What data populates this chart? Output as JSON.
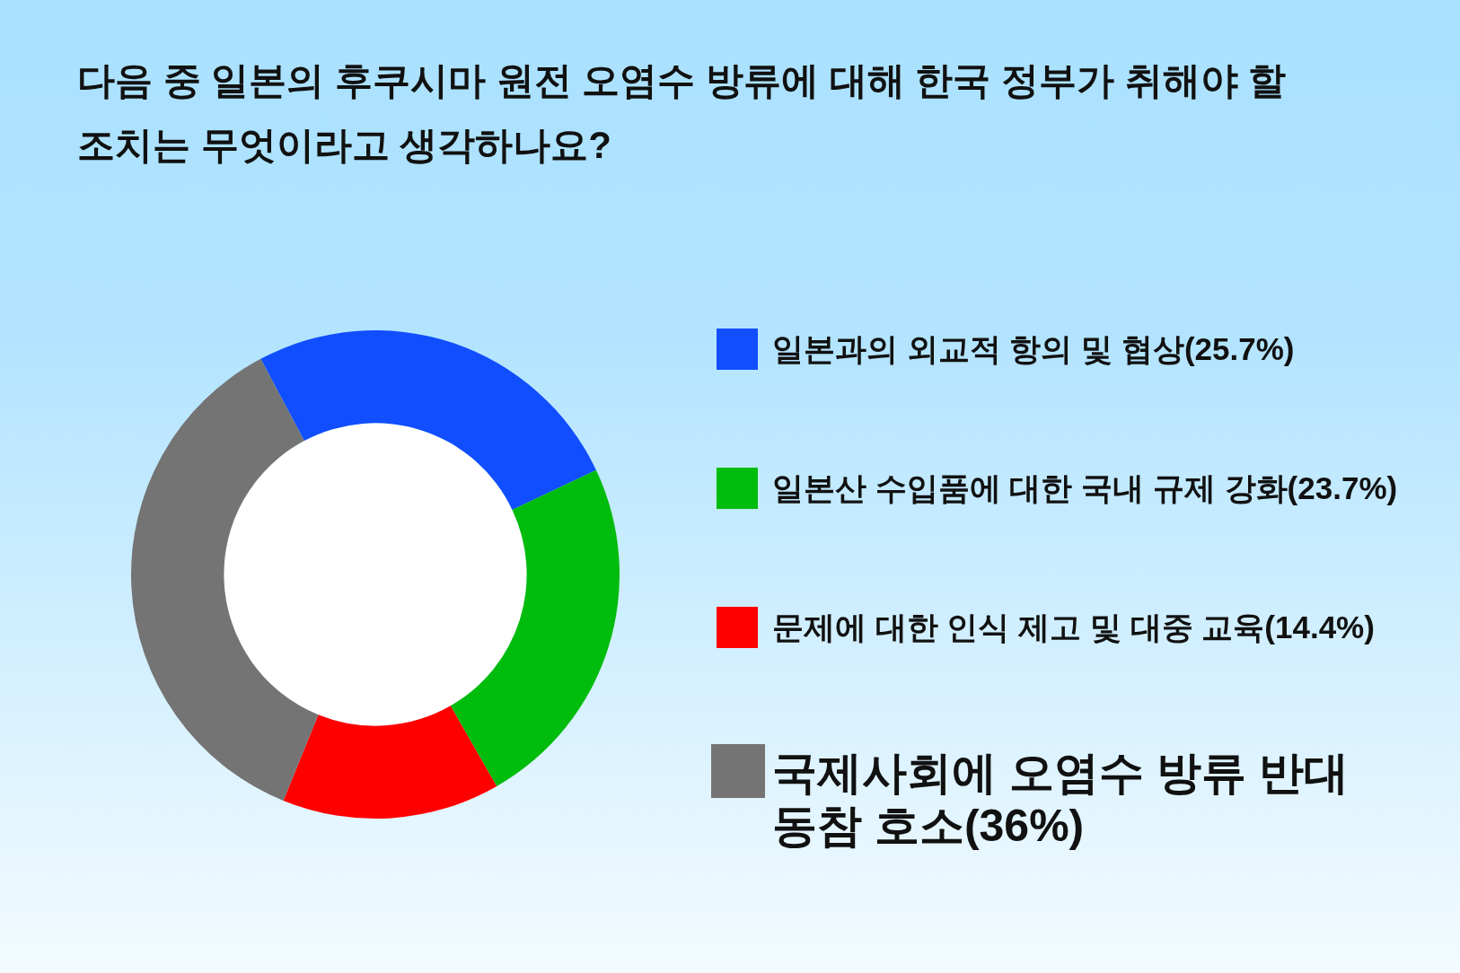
{
  "chart_data": {
    "type": "donut",
    "title": "다음 중 일본의 후쿠시마 원전 오염수 방류에 대해 한국 정부가 취해야 할 조치는 무엇이라고 생각하나요?",
    "categories": [
      "일본과의 외교적 항의 및 협상(25.7%)",
      "일본산 수입품에 대한 국내 규제 강화(23.7%)",
      "문제에 대한 인식 제고 및 대중 교육(14.4%)",
      "국제사회에 오염수 방류 반대 동참 호소(36%)"
    ],
    "values": [
      25.7,
      23.7,
      14.4,
      36
    ],
    "colors": [
      "#114eff",
      "#00bc0c",
      "#ff0000",
      "#747474"
    ],
    "legend": "right"
  }
}
